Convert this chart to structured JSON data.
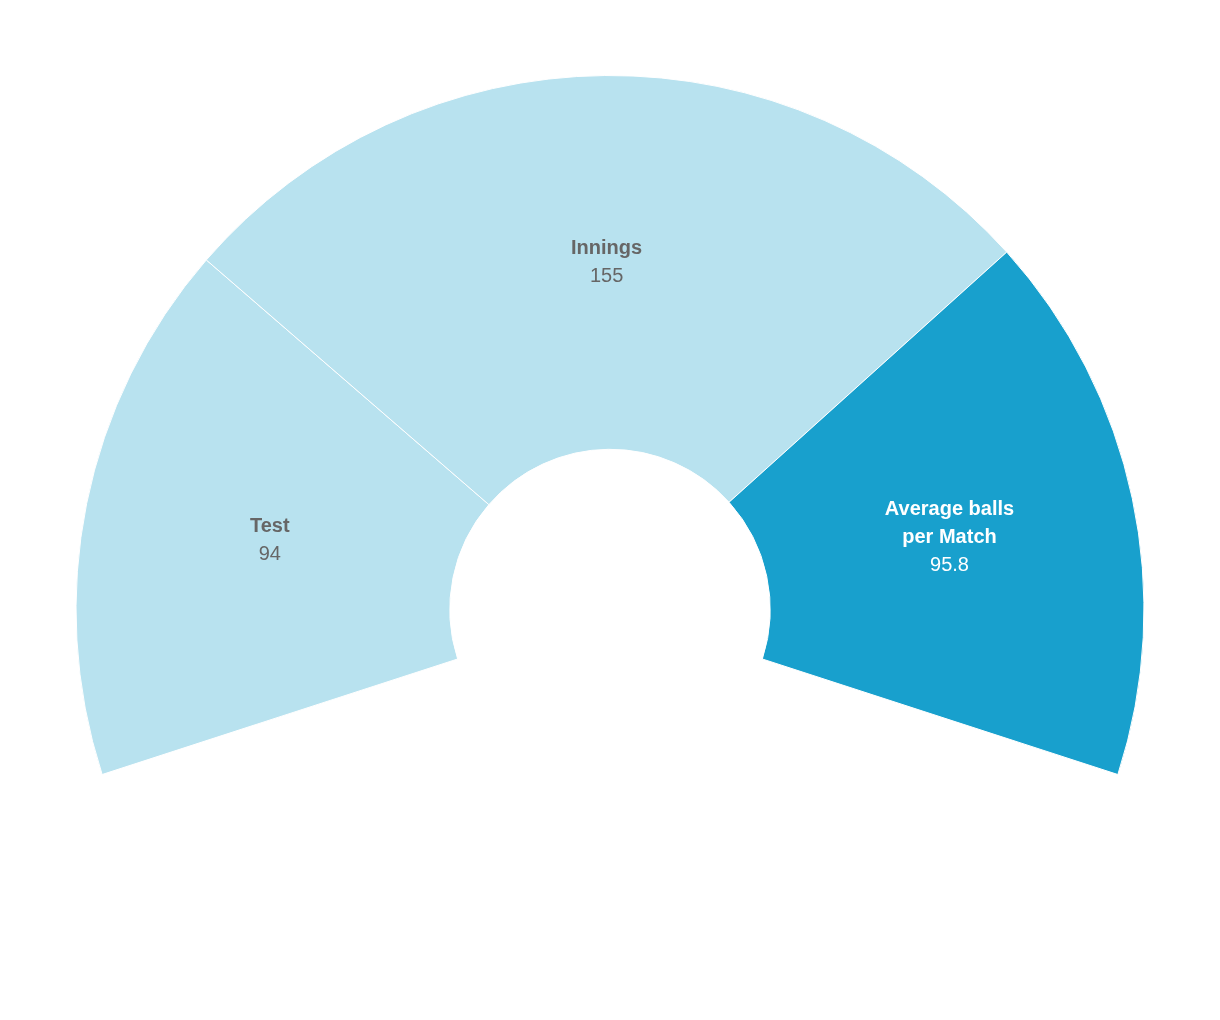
{
  "chart_data": {
    "type": "donut",
    "categories": [
      "Test",
      "Innings",
      "Average balls per Match"
    ],
    "values": [
      94,
      155,
      95.8
    ],
    "colors": [
      "#b8e2ef",
      "#b8e2ef",
      "#18a0cd"
    ],
    "data_labels": true,
    "legend": false
  }
}
